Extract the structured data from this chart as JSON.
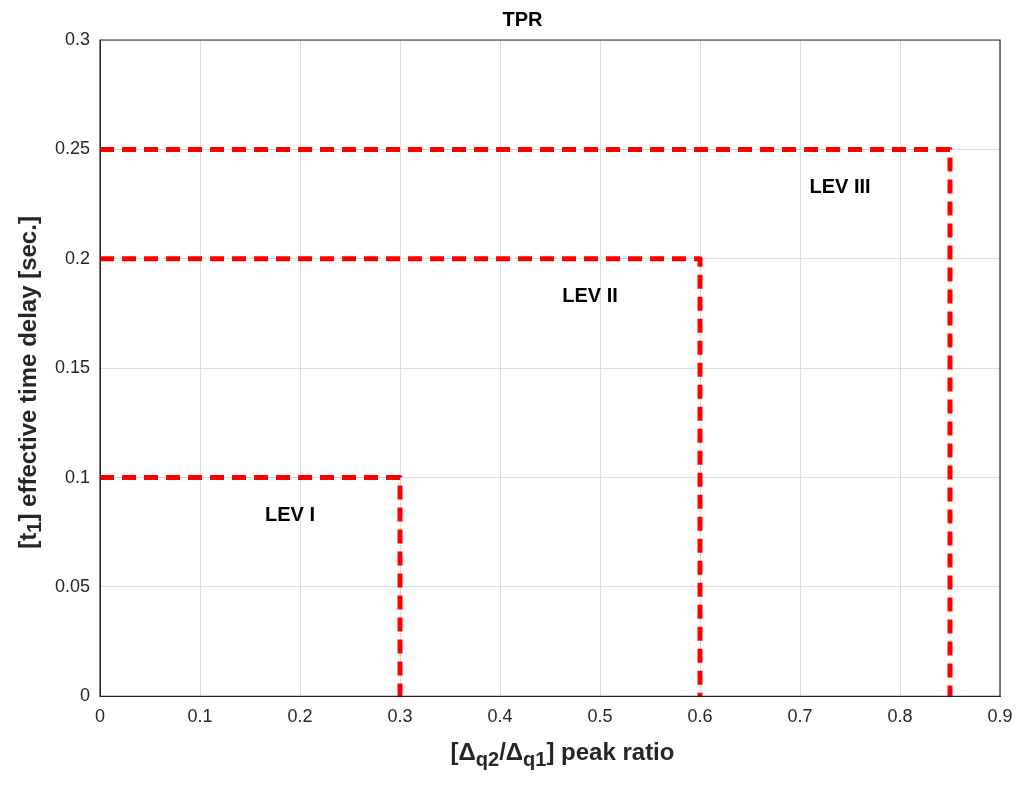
{
  "chart_data": {
    "type": "line",
    "title": "TPR",
    "xlabel": "[Δ$_{q2}$/Δ$_{q1}$] peak ratio",
    "ylabel": "[t$_{1}$] effective time delay [sec.]",
    "series": [
      {
        "color": "#ff0000",
        "x": [
          0,
          0.3,
          0.3
        ],
        "values": [
          0.1,
          0.1,
          0
        ]
      },
      {
        "color": "#ff0000",
        "x": [
          0,
          0.6,
          0.6
        ],
        "values": [
          0.2,
          0.2,
          0
        ]
      },
      {
        "color": "#ff0000",
        "x": [
          0,
          0.85,
          0.85
        ],
        "values": [
          0.25,
          0.25,
          0
        ]
      }
    ],
    "xlim": [
      0,
      0.9
    ],
    "xticks": [
      0,
      0.1,
      0.2,
      0.3,
      0.4,
      0.5,
      0.6,
      0.7,
      0.8,
      0.9
    ],
    "ylim": [
      0,
      0.3
    ],
    "yticks": [
      0,
      0.05,
      0.1,
      0.15,
      0.2,
      0.25,
      0.3
    ],
    "annotations": [
      "LEV I",
      "LEV II",
      "LEV III"
    ],
    "grid": true,
    "legend": false,
    "marker": "none",
    "line_style": "dashed"
  }
}
